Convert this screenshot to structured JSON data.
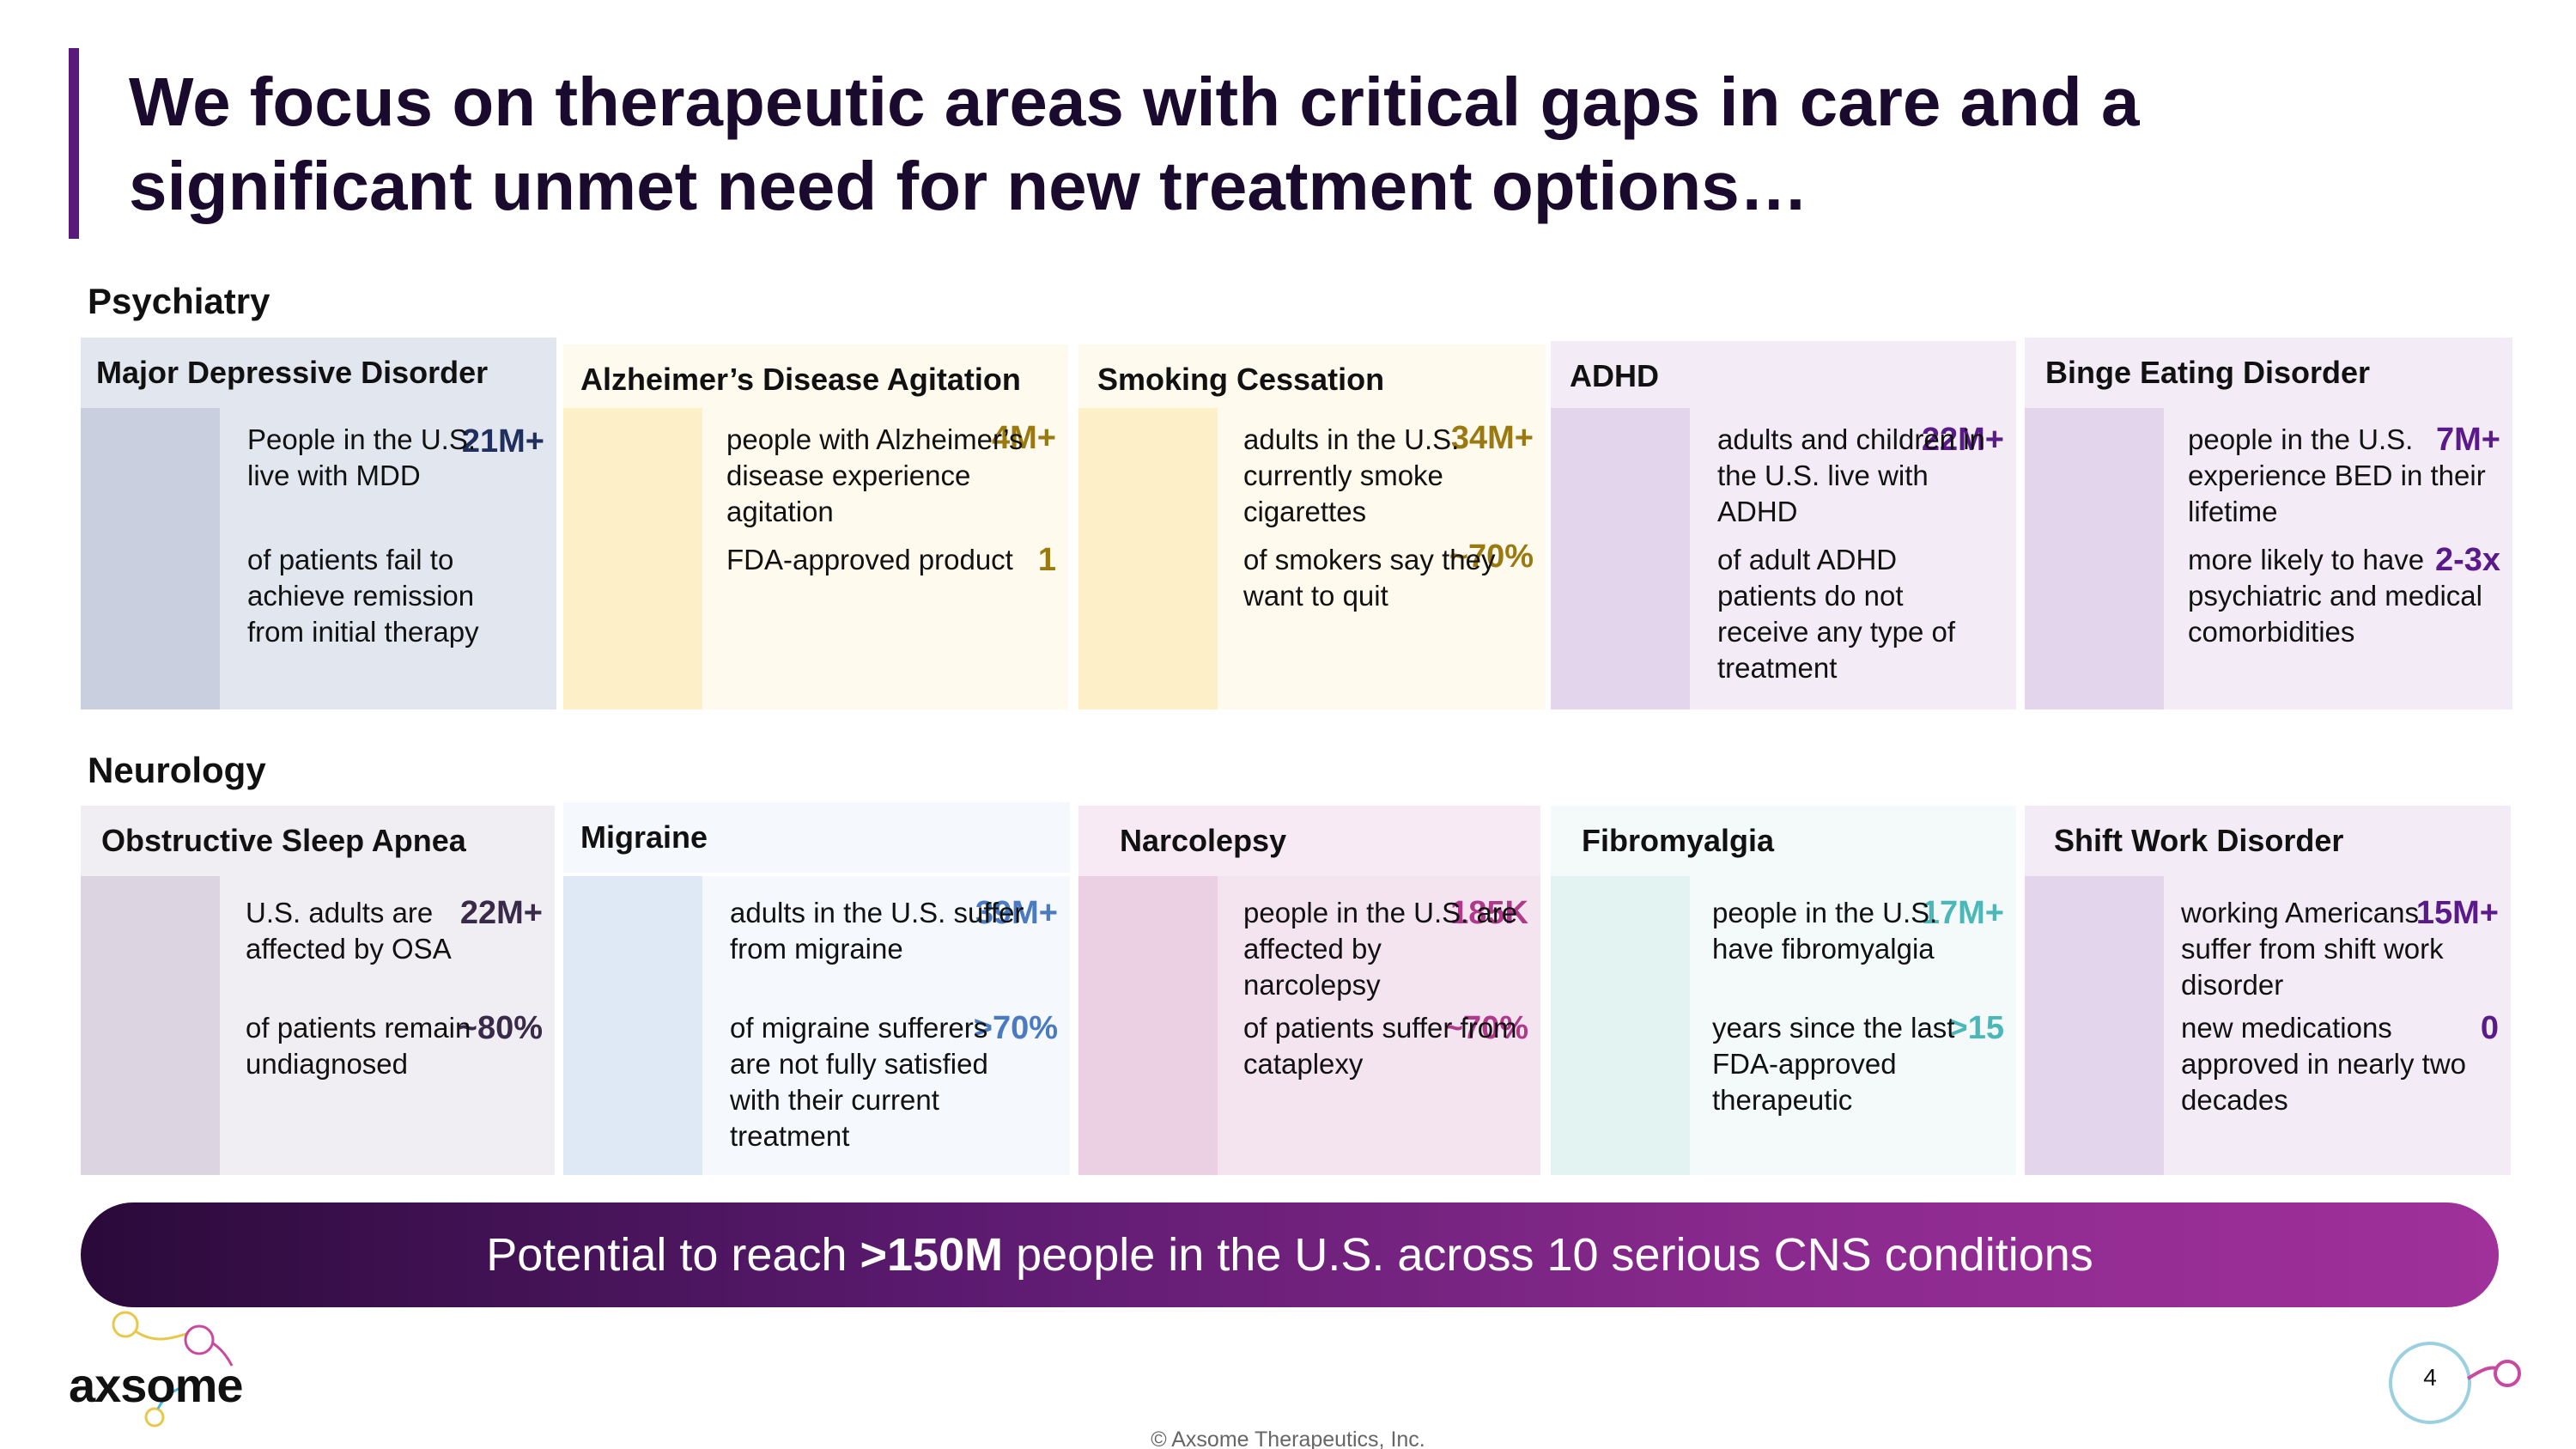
{
  "title": "We focus on therapeutic areas with critical gaps in care and a significant unmet need for new treatment options…",
  "sections": {
    "psychiatry": "Psychiatry",
    "neurology": "Neurology"
  },
  "psychiatry": [
    {
      "name": "Major Depressive Disorder",
      "stats": [
        {
          "value": "21M+",
          "text": "People in the U.S. live with MDD"
        },
        {
          "value": "",
          "text": "of patients fail to achieve remission from initial therapy"
        }
      ]
    },
    {
      "name": "Alzheimer’s Disease Agitation",
      "stats": [
        {
          "value": "4M+",
          "text": "people with Alzheimer’s disease experience agitation"
        },
        {
          "value": "1",
          "text": "FDA-approved product"
        }
      ]
    },
    {
      "name": "Smoking Cessation",
      "stats": [
        {
          "value": "34M+",
          "text": "adults in the U.S. currently smoke cigarettes"
        },
        {
          "value": "~70%",
          "text": "of smokers say they want to quit"
        }
      ]
    },
    {
      "name": "ADHD",
      "stats": [
        {
          "value": "22M+",
          "text": "adults and children in the U.S. live with ADHD"
        },
        {
          "value": "",
          "text": "of adult ADHD patients do not receive any type of treatment"
        }
      ]
    },
    {
      "name": "Binge Eating Disorder",
      "stats": [
        {
          "value": "7M+",
          "text": "people in the U.S. experience BED in their lifetime"
        },
        {
          "value": "2-3x",
          "text": "more likely to have psychiatric and medical comorbidities"
        }
      ]
    }
  ],
  "neurology": [
    {
      "name": "Obstructive Sleep Apnea",
      "stats": [
        {
          "value": "22M+",
          "text": "U.S. adults are affected by OSA"
        },
        {
          "value": "~80%",
          "text": "of patients remain undiagnosed"
        }
      ]
    },
    {
      "name": "Migraine",
      "stats": [
        {
          "value": "39M+",
          "text": "adults in the U.S. suffer from migraine"
        },
        {
          "value": ">70%",
          "text": "of migraine sufferers are not fully satisfied with their current treatment"
        }
      ]
    },
    {
      "name": "Narcolepsy",
      "stats": [
        {
          "value": "185K",
          "text": "people in the U.S. are affected by narcolepsy"
        },
        {
          "value": "~70%",
          "text": "of patients suffer from cataplexy"
        }
      ]
    },
    {
      "name": "Fibromyalgia",
      "stats": [
        {
          "value": "17M+",
          "text": "people in the U.S. have fibromyalgia"
        },
        {
          "value": ">15",
          "text": "years since the last FDA-approved therapeutic"
        }
      ]
    },
    {
      "name": "Shift Work Disorder",
      "stats": [
        {
          "value": "15M+",
          "text": "working Americans suffer from shift work disorder"
        },
        {
          "value": "0",
          "text": "new medications approved in nearly two decades"
        }
      ]
    }
  ],
  "banner": {
    "prefix": "Potential to reach ",
    "highlight": ">150M",
    "suffix": " people in the U.S. across 10 serious CNS conditions"
  },
  "logo": {
    "text": "axsome"
  },
  "page_number": "4",
  "copyright": "© Axsome Therapeutics, Inc.",
  "colors": {
    "title_accent": "#5a1a7a",
    "mdd": "#1f2f5e",
    "alz": "#9a7a10",
    "smoke": "#9a7a10",
    "adhd": "#5a1a8a",
    "bed": "#5a1a8a",
    "osa": "#3a2a4a",
    "migraine": "#4a7ac0",
    "narcolepsy": "#b03a8a",
    "fibro": "#4ab8b8",
    "swd": "#5a1a8a"
  }
}
